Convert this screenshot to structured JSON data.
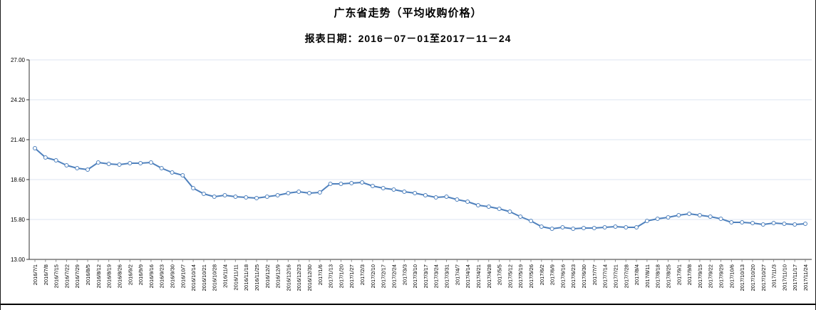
{
  "chart": {
    "title": "广东省走势（平均收购价格）",
    "subtitle": "报表日期：2016－07－01至2017－11－24"
  },
  "chart_data": {
    "type": "line",
    "title": "广东省走势（平均收购价格）",
    "subtitle": "报表日期：2016－07－01至2017－11－24",
    "xlabel": "",
    "ylabel": "",
    "ylim": [
      13.0,
      27.0
    ],
    "ytick_interval": 2.8,
    "ytick_labels": [
      "27.00",
      "24.20",
      "21.40",
      "18.60",
      "15.80",
      "13.00"
    ],
    "ytick_values": [
      27.0,
      24.2,
      21.4,
      18.6,
      15.8,
      13.0
    ],
    "grid": true,
    "legend_position": "none",
    "line_color": "#4f81bd",
    "marker": "open-circle",
    "marker_fill": "#ffffff",
    "gridline_color": "#dde6f0",
    "axis_color": "#333333",
    "categories": [
      "2016/7/1",
      "2016/7/8",
      "2016/7/15",
      "2016/7/22",
      "2016/7/29",
      "2016/8/5",
      "2016/8/12",
      "2016/8/19",
      "2016/8/26",
      "2016/9/2",
      "2016/9/9",
      "2016/9/16",
      "2016/9/23",
      "2016/9/30",
      "2016/10/7",
      "2016/10/14",
      "2016/10/21",
      "2016/10/28",
      "2016/11/4",
      "2016/11/11",
      "2016/11/18",
      "2016/11/25",
      "2016/12/2",
      "2016/12/9",
      "2016/12/16",
      "2016/12/23",
      "2016/12/30",
      "2017/1/6",
      "2017/1/13",
      "2017/1/20",
      "2017/1/27",
      "2017/2/3",
      "2017/2/10",
      "2017/2/17",
      "2017/2/24",
      "2017/3/3",
      "2017/3/10",
      "2017/3/17",
      "2017/3/24",
      "2017/3/31",
      "2017/4/7",
      "2017/4/14",
      "2017/4/21",
      "2017/4/28",
      "2017/5/5",
      "2017/5/12",
      "2017/5/19",
      "2017/5/26",
      "2017/6/2",
      "2017/6/9",
      "2017/6/16",
      "2017/6/23",
      "2017/6/30",
      "2017/7/7",
      "2017/7/14",
      "2017/7/21",
      "2017/7/28",
      "2017/8/4",
      "2017/8/11",
      "2017/8/18",
      "2017/8/25",
      "2017/9/1",
      "2017/9/8",
      "2017/9/15",
      "2017/9/22",
      "2017/9/29",
      "2017/10/6",
      "2017/10/13",
      "2017/10/20",
      "2017/10/27",
      "2017/11/3",
      "2017/11/10",
      "2017/11/17",
      "2017/11/24"
    ],
    "values": [
      20.8,
      20.15,
      19.95,
      19.6,
      19.4,
      19.3,
      19.8,
      19.7,
      19.65,
      19.75,
      19.75,
      19.8,
      19.4,
      19.1,
      18.9,
      18.0,
      17.6,
      17.4,
      17.5,
      17.4,
      17.35,
      17.3,
      17.4,
      17.5,
      17.65,
      17.75,
      17.65,
      17.7,
      18.3,
      18.3,
      18.35,
      18.4,
      18.15,
      18.0,
      17.9,
      17.75,
      17.65,
      17.5,
      17.35,
      17.4,
      17.2,
      17.05,
      16.8,
      16.7,
      16.55,
      16.35,
      16.0,
      15.7,
      15.3,
      15.15,
      15.25,
      15.15,
      15.2,
      15.2,
      15.25,
      15.3,
      15.25,
      15.25,
      15.7,
      15.85,
      15.95,
      16.1,
      16.2,
      16.1,
      16.0,
      15.85,
      15.6,
      15.6,
      15.55,
      15.45,
      15.55,
      15.5,
      15.45,
      15.5
    ]
  }
}
